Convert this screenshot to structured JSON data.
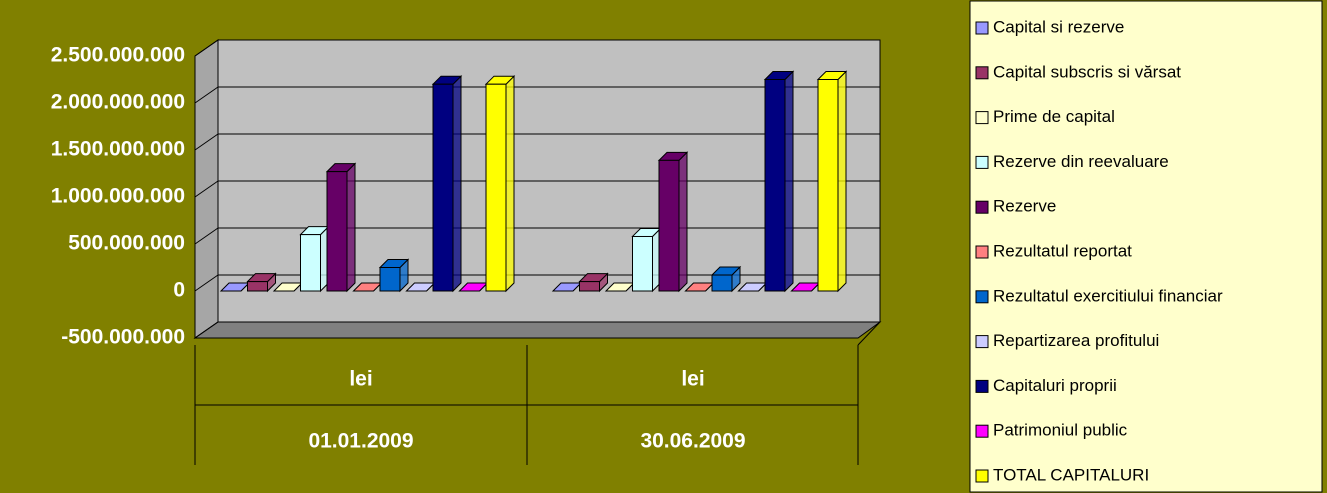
{
  "chart_data": {
    "type": "bar3d",
    "categories": [
      [
        "lei",
        "01.01.2009"
      ],
      [
        "lei",
        "30.06.2009"
      ]
    ],
    "series": [
      {
        "name": "Capital si rezerve",
        "color": "#9999ff",
        "values": [
          0,
          0
        ]
      },
      {
        "name": "Capital subscris si vărsat",
        "color": "#993366",
        "values": [
          100000000,
          100000000
        ]
      },
      {
        "name": "Prime de capital",
        "color": "#ffffcc",
        "values": [
          0,
          0
        ]
      },
      {
        "name": "Rezerve din reevaluare",
        "color": "#ccffff",
        "values": [
          600000000,
          580000000
        ]
      },
      {
        "name": "Rezerve",
        "color": "#660066",
        "values": [
          1270000000,
          1390000000
        ]
      },
      {
        "name": "Rezultatul reportat",
        "color": "#ff8080",
        "values": [
          0,
          0
        ]
      },
      {
        "name": "Rezultatul exercitiului financiar",
        "color": "#0066cc",
        "values": [
          250000000,
          170000000
        ]
      },
      {
        "name": "Repartizarea profitului",
        "color": "#ccccff",
        "values": [
          0,
          0
        ]
      },
      {
        "name": "Capitaluri proprii",
        "color": "#000080",
        "values": [
          2200000000,
          2250000000
        ]
      },
      {
        "name": "Patrimoniul public",
        "color": "#ff00ff",
        "values": [
          0,
          0
        ]
      },
      {
        "name": "TOTAL CAPITALURI",
        "color": "#ffff00",
        "values": [
          2200000000,
          2250000000
        ]
      }
    ],
    "ylim": [
      -500000000,
      2500000000
    ],
    "yticks": [
      {
        "value": -500000000,
        "label": "-500.000.000"
      },
      0,
      {
        "value": 500000000,
        "label": "500.000.000"
      },
      {
        "value": 1000000000,
        "label": "1.000.000.000"
      },
      {
        "value": 1500000000,
        "label": "1.500.000.000"
      },
      {
        "value": 2000000000,
        "label": "2.000.000.000"
      },
      {
        "value": 2500000000,
        "label": "2.500.000.000"
      }
    ],
    "grid": true,
    "legend": "right"
  }
}
